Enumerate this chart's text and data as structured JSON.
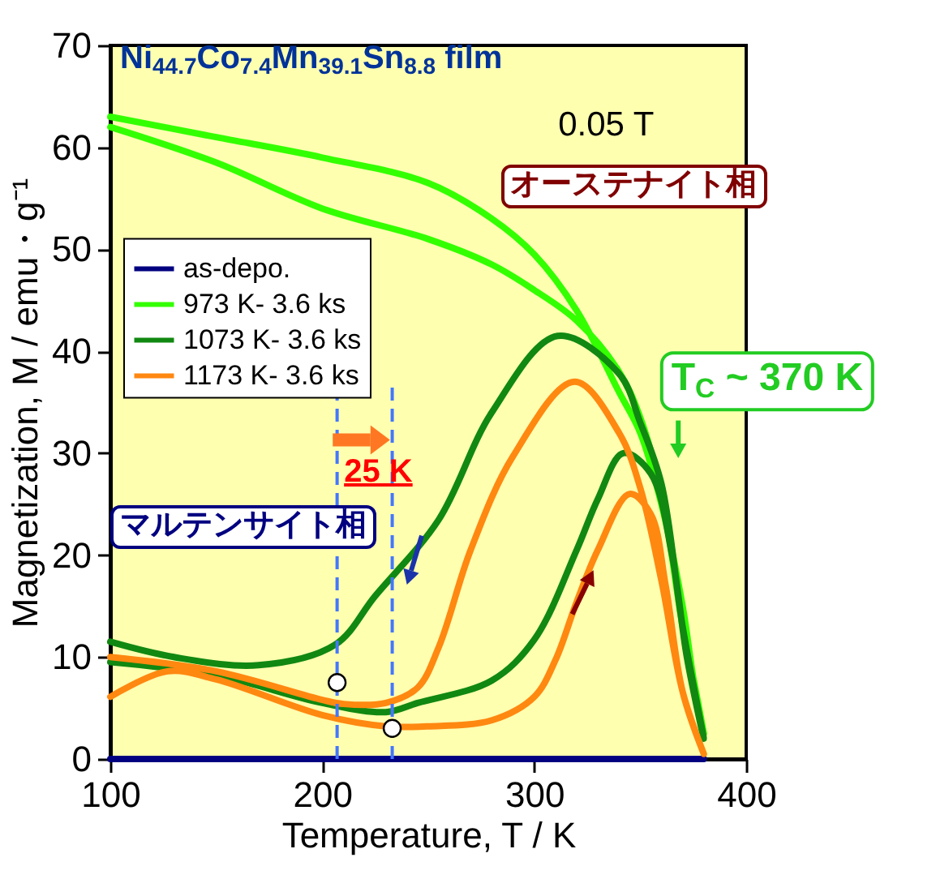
{
  "chart_data": {
    "type": "line",
    "title": "Ni$_{44.7}$Co$_{7.4}$Mn$_{39.1}$Sn$_{8.8}$ film",
    "xlabel": "Temperature, T / K",
    "ylabel": "Magnetization, M / emu・g⁻¹",
    "annotations": [
      "0.05 T",
      "オーステナイト相",
      "マルテンサイト相",
      "T$_{C}$ ~ 370 K",
      "25 K"
    ],
    "xlim": [
      100,
      400
    ],
    "xticks": [
      100,
      200,
      300,
      400
    ],
    "ylim": [
      0,
      70
    ],
    "yticks": [
      0,
      10,
      20,
      30,
      40,
      50,
      60,
      70
    ],
    "legend": "left",
    "line_style": "solid",
    "marker": "none",
    "ref_lines": [
      {
        "axis": "x",
        "value": 207,
        "color": "#4477ff",
        "line_style": "dashed"
      },
      {
        "axis": "x",
        "value": 233,
        "color": "#4477ff",
        "line_style": "dashed"
      }
    ],
    "series": [
      {
        "name": "as-depo.",
        "color": "#000080",
        "x": [
          100,
          380
        ],
        "values": [
          0,
          0
        ]
      },
      {
        "name": "973 K- 3.6 ks",
        "color": "#33ff00",
        "x": [
          100,
          150,
          200,
          250,
          280,
          300,
          320,
          340,
          350,
          360,
          370,
          375,
          380,
          375,
          370,
          360,
          350,
          340,
          320,
          300,
          280,
          250,
          200,
          150,
          100
        ],
        "values": [
          63,
          61,
          59,
          56.5,
          53,
          49.5,
          44,
          36,
          32,
          25,
          15,
          8,
          2.5,
          8,
          13,
          26,
          33.5,
          38,
          43,
          46,
          48.5,
          51,
          54,
          58.5,
          62
        ]
      },
      {
        "name": "1073 K- 3.6 ks",
        "color": "#118811",
        "x": [
          100,
          150,
          200,
          230,
          245,
          280,
          300,
          320,
          330,
          342,
          355,
          365,
          372,
          380,
          370,
          360,
          350,
          340,
          311,
          280,
          255,
          225,
          206,
          170,
          130,
          100
        ],
        "values": [
          9.5,
          8.2,
          5.5,
          4.6,
          5.5,
          7.7,
          11.7,
          20.5,
          25.5,
          30,
          28,
          20,
          10,
          2,
          13,
          27,
          33,
          37.8,
          41.5,
          34,
          23.5,
          16,
          11.2,
          9.2,
          10,
          11.5
        ]
      },
      {
        "name": "1173 K- 3.6 ks",
        "color": "#ff8811",
        "x": [
          100,
          127,
          150,
          200,
          230,
          250,
          280,
          300,
          310,
          320,
          330,
          345,
          355,
          362,
          370,
          380,
          370,
          360,
          350,
          340,
          319,
          290,
          270,
          255,
          245,
          230,
          210,
          200,
          150,
          100
        ],
        "values": [
          6.1,
          8.6,
          7.8,
          4.3,
          3.2,
          3.2,
          3.8,
          6.1,
          9.7,
          15.4,
          20.5,
          26,
          24,
          17,
          6.6,
          0.5,
          6.6,
          17.5,
          26.6,
          32,
          37,
          29.7,
          20.5,
          11,
          7,
          5.5,
          5.4,
          5.8,
          8.6,
          10
        ]
      },
      {
        "type": "scatter",
        "color": "#ffffff",
        "marker": "circle",
        "x": [
          207,
          233
        ],
        "values": [
          7.5,
          3
        ]
      }
    ]
  }
}
